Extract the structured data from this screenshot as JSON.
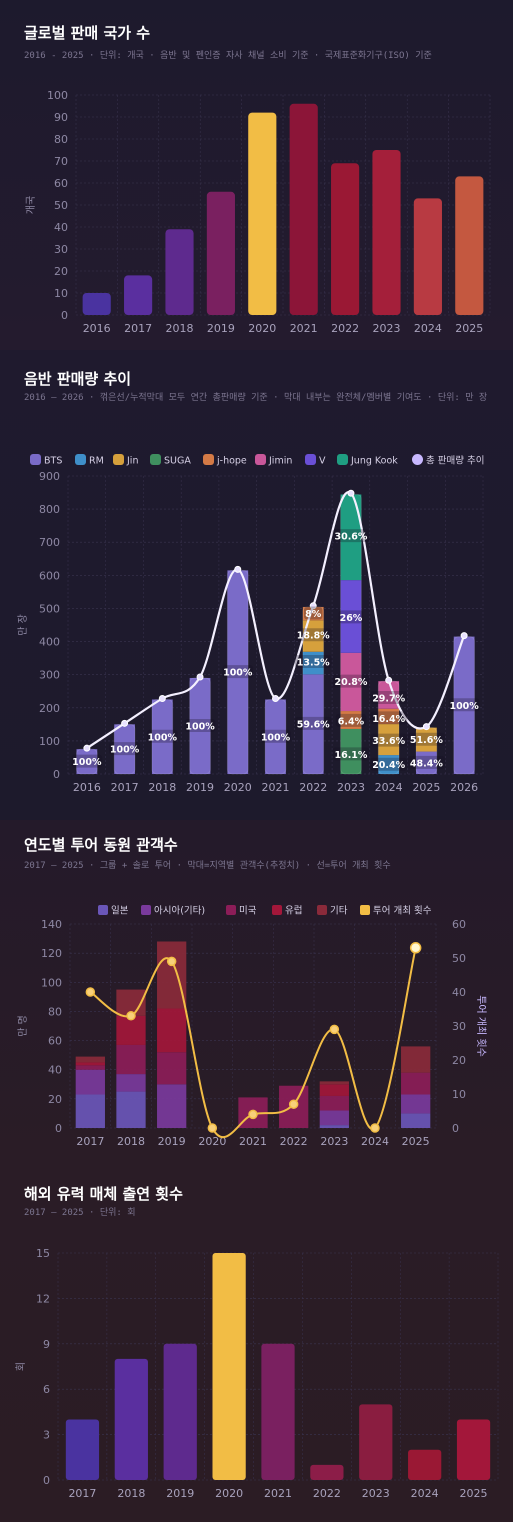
{
  "chart_data": [
    {
      "type": "bar",
      "title": "글로벌 판매 국가 수",
      "subtitle": "2016 - 2025 · 단위: 개국 · 음반 및 펜인증 자사 채널 소비 기준 · 국제표준화기구(ISO) 기준",
      "ylabel": "개국",
      "ylim": [
        0,
        100
      ],
      "yticks": [
        0,
        10,
        20,
        30,
        40,
        50,
        60,
        70,
        80,
        90,
        100
      ],
      "categories": [
        "2016",
        "2017",
        "2018",
        "2019",
        "2020",
        "2021",
        "2022",
        "2023",
        "2024",
        "2025"
      ],
      "values": [
        10,
        18,
        39,
        56,
        92,
        96,
        69,
        75,
        53,
        63
      ],
      "colors": [
        "#4a33a0",
        "#5a2f9f",
        "#5e2a8e",
        "#7a2060",
        "#f2bd45",
        "#8c1538",
        "#9a1834",
        "#a41f3a",
        "#b83a42",
        "#c45840"
      ],
      "grid": true
    },
    {
      "type": "bar",
      "stacked": true,
      "title": "음반 판매량 추이",
      "subtitle": "2016 — 2026 · 꺾은선/누적막대 모두 연간 총판매량 기준 · 막대 내부는 완전체/멤버별 기여도 · 단위: 만 장",
      "ylabel": "만 장",
      "ylim": [
        0,
        900
      ],
      "yticks": [
        0,
        100,
        200,
        300,
        400,
        500,
        600,
        700,
        800,
        900
      ],
      "categories": [
        "2016",
        "2017",
        "2018",
        "2019",
        "2020",
        "2021",
        "2022",
        "2023",
        "2024",
        "2025",
        "2026"
      ],
      "legend": [
        "BTS",
        "RM",
        "Jin",
        "SUGA",
        "j-hope",
        "Jimin",
        "V",
        "Jung Kook",
        "총 판매량 추이"
      ],
      "legend_placement": "top",
      "member_colors": {
        "BTS": "#7a6bc8",
        "RM": "#3f8fc9",
        "Jin": "#d6a03c",
        "SUGA": "#3f8f5f",
        "j-hope": "#d47a46",
        "Jimin": "#c9579a",
        "V": "#6a4fd6",
        "Jung Kook": "#1f9e82"
      },
      "line_color": "#c8b8ff",
      "totals": [
        75,
        150,
        225,
        290,
        615,
        225,
        505,
        845,
        280,
        140,
        415
      ],
      "segments": [
        [
          {
            "m": "BTS",
            "pct": 100
          }
        ],
        [
          {
            "m": "BTS",
            "pct": 100
          }
        ],
        [
          {
            "m": "BTS",
            "pct": 100
          }
        ],
        [
          {
            "m": "BTS",
            "pct": 100
          }
        ],
        [
          {
            "m": "BTS",
            "pct": 100
          }
        ],
        [
          {
            "m": "BTS",
            "pct": 100
          }
        ],
        [
          {
            "m": "BTS",
            "pct": 59.6
          },
          {
            "m": "RM",
            "pct": 13.5
          },
          {
            "m": "Jin",
            "pct": 18.8
          },
          {
            "m": "j-hope",
            "pct": 8
          }
        ],
        [
          {
            "m": "SUGA",
            "pct": 16.1
          },
          {
            "m": "j-hope",
            "pct": 6.4
          },
          {
            "m": "Jimin",
            "pct": 20.8
          },
          {
            "m": "V",
            "pct": 26
          },
          {
            "m": "Jung Kook",
            "pct": 30.6
          }
        ],
        [
          {
            "m": "RM",
            "pct": 20.4
          },
          {
            "m": "Jin",
            "pct": 33.6
          },
          {
            "m": "j-hope",
            "pct": 16.4
          },
          {
            "m": "Jimin",
            "pct": 29.7
          }
        ],
        [
          {
            "m": "BTS",
            "pct": 48.4
          },
          {
            "m": "Jin",
            "pct": 51.6
          }
        ],
        [
          {
            "m": "BTS",
            "pct": 100
          }
        ]
      ],
      "labels": [
        [
          {
            "t": "100%",
            "at": 0.5
          }
        ],
        [
          {
            "t": "100%",
            "at": 0.5
          }
        ],
        [
          {
            "t": "100%",
            "at": 0.5
          }
        ],
        [
          {
            "t": "100%",
            "at": 0.5
          }
        ],
        [
          {
            "t": "100%",
            "at": 0.5
          }
        ],
        [
          {
            "t": "100%",
            "at": 0.5
          }
        ],
        [
          {
            "t": "59.6%",
            "at": 0.3
          },
          {
            "t": "13.5%",
            "at": 0.67
          },
          {
            "t": "18.8%",
            "at": 0.83
          },
          {
            "t": "8%",
            "at": 0.96
          }
        ],
        [
          {
            "t": "16.1%",
            "at": 0.07
          },
          {
            "t": "6.4%",
            "at": 0.19
          },
          {
            "t": "20.8%",
            "at": 0.33
          },
          {
            "t": "26%",
            "at": 0.56
          },
          {
            "t": "30.6%",
            "at": 0.85
          }
        ],
        [
          {
            "t": "20.4%",
            "at": 0.1
          },
          {
            "t": "33.6%",
            "at": 0.36
          },
          {
            "t": "16.4%",
            "at": 0.6
          },
          {
            "t": "29.7%",
            "at": 0.82
          }
        ],
        [
          {
            "t": "48.4%",
            "at": 0.24
          },
          {
            "t": "51.6%",
            "at": 0.74
          }
        ],
        [
          {
            "t": "100%",
            "at": 0.5
          }
        ]
      ]
    },
    {
      "type": "bar",
      "stacked": true,
      "title": "연도별 투어 동원 관객수",
      "subtitle": "2017 — 2025 · 그룹 + 솔로 투어 · 막대=지역별 관객수(추정치) · 선=투어 개최 횟수",
      "ylabel": "만 명",
      "y2label": "투어 개최 횟수",
      "ylim": [
        0,
        140
      ],
      "yticks": [
        0,
        20,
        40,
        60,
        80,
        100,
        120,
        140
      ],
      "y2lim": [
        0,
        60
      ],
      "y2ticks": [
        0,
        10,
        20,
        30,
        40,
        50,
        60
      ],
      "categories": [
        "2017",
        "2018",
        "2019",
        "2020",
        "2021",
        "2022",
        "2023",
        "2024",
        "2025"
      ],
      "legend": [
        "일본",
        "아시아(기타)",
        "미국",
        "유럽",
        "기타",
        "투어 개최 횟수"
      ],
      "legend_placement": "top",
      "series": [
        {
          "name": "일본",
          "color": "#6a56b8",
          "values": [
            23,
            25,
            0,
            0,
            0,
            0,
            2,
            0,
            10
          ]
        },
        {
          "name": "아시아(기타)",
          "color": "#7a3a9c",
          "values": [
            17,
            12,
            30,
            0,
            0,
            0,
            10,
            0,
            13
          ]
        },
        {
          "name": "미국",
          "color": "#8c1d58",
          "values": [
            3,
            20,
            22,
            0,
            21,
            29,
            10,
            0,
            15
          ]
        },
        {
          "name": "유럽",
          "color": "#a3173a",
          "values": [
            2,
            20,
            30,
            0,
            0,
            0,
            8,
            0,
            0
          ]
        },
        {
          "name": "기타",
          "color": "#8a2a3a",
          "values": [
            4,
            18,
            46,
            0,
            0,
            0,
            2,
            0,
            18
          ]
        }
      ],
      "line": {
        "name": "투어 개최 횟수",
        "color": "#f2bd45",
        "values": [
          40,
          33,
          49,
          0,
          4,
          7,
          29,
          0,
          53
        ]
      }
    },
    {
      "type": "bar",
      "title": "해외 유력 매체 출연 횟수",
      "subtitle": "2017 — 2025 · 단위: 회",
      "ylabel": "회",
      "ylim": [
        0,
        15
      ],
      "yticks": [
        0,
        3,
        6,
        9,
        12,
        15
      ],
      "categories": [
        "2017",
        "2018",
        "2019",
        "2020",
        "2021",
        "2022",
        "2023",
        "2024",
        "2025"
      ],
      "values": [
        4,
        8,
        9,
        15,
        9,
        1,
        5,
        2,
        4
      ],
      "colors": [
        "#4a33a0",
        "#5a2f9f",
        "#5e2a8e",
        "#f2bd45",
        "#7a2060",
        "#8c1d48",
        "#8a1d40",
        "#9a1834",
        "#a3173a"
      ],
      "grid": true
    }
  ]
}
